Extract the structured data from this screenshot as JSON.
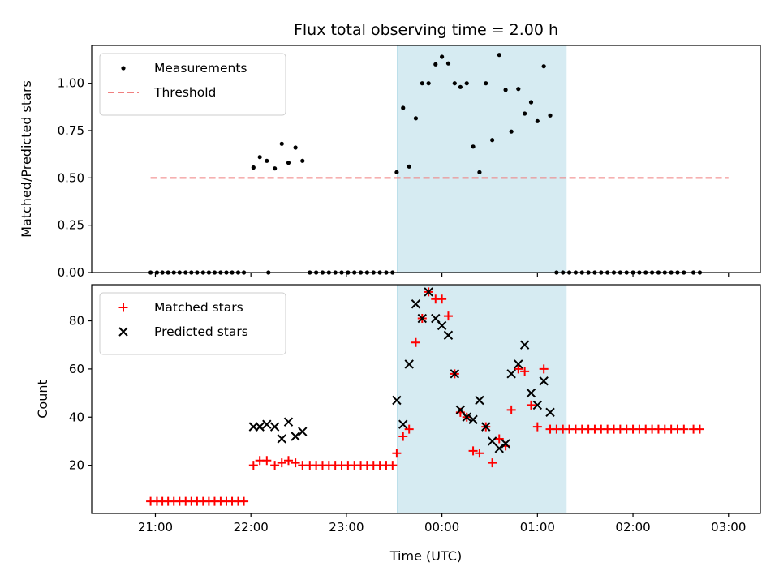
{
  "chart_data": [
    {
      "type": "scatter",
      "title": "Flux total observing time = 2.00 h",
      "xlabel": "",
      "ylabel": "Matched/Predicted stars",
      "xlim": [
        -200,
        1900
      ],
      "ylim": [
        0,
        1.2
      ],
      "xticks": [
        {
          "v": 0,
          "label": ""
        },
        {
          "v": 300,
          "label": ""
        },
        {
          "v": 600,
          "label": ""
        },
        {
          "v": 900,
          "label": ""
        },
        {
          "v": 1200,
          "label": ""
        },
        {
          "v": 1500,
          "label": ""
        },
        {
          "v": 1800,
          "label": ""
        }
      ],
      "yticks": [
        {
          "v": 0,
          "label": "0.00"
        },
        {
          "v": 0.25,
          "label": "0.25"
        },
        {
          "v": 0.5,
          "label": "0.50"
        },
        {
          "v": 0.75,
          "label": "0.75"
        },
        {
          "v": 1.0,
          "label": "1.00"
        }
      ],
      "x_unit_note": "minutes after 21:00 UTC",
      "shaded_region": {
        "x0": 760,
        "x1": 1290,
        "color": "#add8e6"
      },
      "threshold": {
        "name": "Threshold",
        "y": 0.5,
        "x0": -15,
        "x1": 1800,
        "color": "#f08080"
      },
      "series": [
        {
          "name": "Measurements",
          "marker": "dot",
          "color": "#000000",
          "points": [
            [
              -15,
              0
            ],
            [
              5,
              0
            ],
            [
              22,
              0
            ],
            [
              40,
              0
            ],
            [
              58,
              0
            ],
            [
              76,
              0
            ],
            [
              95,
              0
            ],
            [
              113,
              0
            ],
            [
              131,
              0
            ],
            [
              150,
              0
            ],
            [
              168,
              0
            ],
            [
              186,
              0
            ],
            [
              205,
              0
            ],
            [
              223,
              0
            ],
            [
              241,
              0
            ],
            [
              260,
              0
            ],
            [
              278,
              0
            ],
            [
              355,
              0
            ],
            [
              308,
              0.555
            ],
            [
              328,
              0.61
            ],
            [
              350,
              0.59
            ],
            [
              375,
              0.55
            ],
            [
              397,
              0.68
            ],
            [
              418,
              0.58
            ],
            [
              440,
              0.66
            ],
            [
              462,
              0.59
            ],
            [
              485,
              0
            ],
            [
              505,
              0
            ],
            [
              525,
              0
            ],
            [
              545,
              0
            ],
            [
              565,
              0
            ],
            [
              585,
              0
            ],
            [
              605,
              0
            ],
            [
              625,
              0
            ],
            [
              645,
              0
            ],
            [
              665,
              0
            ],
            [
              685,
              0
            ],
            [
              705,
              0
            ],
            [
              725,
              0
            ],
            [
              745,
              0
            ],
            [
              758,
              0.53
            ],
            [
              778,
              0.87
            ],
            [
              797,
              0.56
            ],
            [
              818,
              0.815
            ],
            [
              838,
              1.0
            ],
            [
              858,
              1.0
            ],
            [
              880,
              1.1
            ],
            [
              900,
              1.14
            ],
            [
              920,
              1.105
            ],
            [
              940,
              1.0
            ],
            [
              958,
              0.98
            ],
            [
              978,
              1.0
            ],
            [
              998,
              0.665
            ],
            [
              1018,
              0.53
            ],
            [
              1038,
              1.0
            ],
            [
              1058,
              0.7
            ],
            [
              1080,
              1.15
            ],
            [
              1100,
              0.965
            ],
            [
              1118,
              0.745
            ],
            [
              1140,
              0.97
            ],
            [
              1160,
              0.84
            ],
            [
              1180,
              0.9
            ],
            [
              1200,
              0.8
            ],
            [
              1220,
              1.09
            ],
            [
              1240,
              0.83
            ],
            [
              1260,
              0
            ],
            [
              1280,
              0
            ],
            [
              1300,
              0
            ],
            [
              1320,
              0
            ],
            [
              1340,
              0
            ],
            [
              1360,
              0
            ],
            [
              1380,
              0
            ],
            [
              1400,
              0
            ],
            [
              1420,
              0
            ],
            [
              1440,
              0
            ],
            [
              1460,
              0
            ],
            [
              1480,
              0
            ],
            [
              1500,
              0
            ],
            [
              1520,
              0
            ],
            [
              1540,
              0
            ],
            [
              1560,
              0
            ],
            [
              1580,
              0
            ],
            [
              1600,
              0
            ],
            [
              1620,
              0
            ],
            [
              1640,
              0
            ],
            [
              1660,
              0
            ],
            [
              1690,
              0
            ],
            [
              1710,
              0
            ]
          ]
        }
      ],
      "legend": "upper left"
    },
    {
      "type": "scatter",
      "title": "",
      "xlabel": "Time (UTC)",
      "ylabel": "Count",
      "xlim": [
        -200,
        1900
      ],
      "ylim": [
        0,
        95
      ],
      "xticks": [
        {
          "v": 0,
          "label": "21:00"
        },
        {
          "v": 300,
          "label": "22:00"
        },
        {
          "v": 600,
          "label": "23:00"
        },
        {
          "v": 900,
          "label": "00:00"
        },
        {
          "v": 1200,
          "label": "01:00"
        },
        {
          "v": 1500,
          "label": "02:00"
        },
        {
          "v": 1800,
          "label": "03:00"
        }
      ],
      "yticks": [
        {
          "v": 20,
          "label": "20"
        },
        {
          "v": 40,
          "label": "40"
        },
        {
          "v": 60,
          "label": "60"
        },
        {
          "v": 80,
          "label": "80"
        }
      ],
      "x_unit_note": "minutes after 21:00 UTC",
      "shaded_region": {
        "x0": 760,
        "x1": 1290,
        "color": "#add8e6"
      },
      "series": [
        {
          "name": "Matched stars",
          "marker": "plus",
          "color": "#ff0000",
          "points": [
            [
              -15,
              5
            ],
            [
              5,
              5
            ],
            [
              22,
              5
            ],
            [
              40,
              5
            ],
            [
              58,
              5
            ],
            [
              76,
              5
            ],
            [
              95,
              5
            ],
            [
              113,
              5
            ],
            [
              131,
              5
            ],
            [
              150,
              5
            ],
            [
              168,
              5
            ],
            [
              186,
              5
            ],
            [
              205,
              5
            ],
            [
              223,
              5
            ],
            [
              241,
              5
            ],
            [
              260,
              5
            ],
            [
              278,
              5
            ],
            [
              308,
              20
            ],
            [
              328,
              22
            ],
            [
              350,
              22
            ],
            [
              375,
              20
            ],
            [
              397,
              21
            ],
            [
              418,
              22
            ],
            [
              440,
              21
            ],
            [
              462,
              20
            ],
            [
              485,
              20
            ],
            [
              505,
              20
            ],
            [
              525,
              20
            ],
            [
              545,
              20
            ],
            [
              565,
              20
            ],
            [
              585,
              20
            ],
            [
              605,
              20
            ],
            [
              625,
              20
            ],
            [
              645,
              20
            ],
            [
              665,
              20
            ],
            [
              685,
              20
            ],
            [
              705,
              20
            ],
            [
              725,
              20
            ],
            [
              745,
              20
            ],
            [
              758,
              25
            ],
            [
              778,
              32
            ],
            [
              797,
              35
            ],
            [
              818,
              71
            ],
            [
              838,
              81
            ],
            [
              858,
              92
            ],
            [
              880,
              89
            ],
            [
              900,
              89
            ],
            [
              920,
              82
            ],
            [
              940,
              58
            ],
            [
              958,
              42
            ],
            [
              978,
              40
            ],
            [
              998,
              26
            ],
            [
              1018,
              25
            ],
            [
              1038,
              36
            ],
            [
              1058,
              21
            ],
            [
              1080,
              31
            ],
            [
              1100,
              28
            ],
            [
              1118,
              43
            ],
            [
              1140,
              60
            ],
            [
              1160,
              59
            ],
            [
              1180,
              45
            ],
            [
              1200,
              36
            ],
            [
              1220,
              60
            ],
            [
              1240,
              35
            ],
            [
              1260,
              35
            ],
            [
              1280,
              35
            ],
            [
              1300,
              35
            ],
            [
              1320,
              35
            ],
            [
              1340,
              35
            ],
            [
              1360,
              35
            ],
            [
              1380,
              35
            ],
            [
              1400,
              35
            ],
            [
              1420,
              35
            ],
            [
              1440,
              35
            ],
            [
              1460,
              35
            ],
            [
              1480,
              35
            ],
            [
              1500,
              35
            ],
            [
              1520,
              35
            ],
            [
              1540,
              35
            ],
            [
              1560,
              35
            ],
            [
              1580,
              35
            ],
            [
              1600,
              35
            ],
            [
              1620,
              35
            ],
            [
              1640,
              35
            ],
            [
              1660,
              35
            ],
            [
              1690,
              35
            ],
            [
              1710,
              35
            ]
          ]
        },
        {
          "name": "Predicted stars",
          "marker": "x",
          "color": "#000000",
          "points": [
            [
              308,
              36
            ],
            [
              328,
              36
            ],
            [
              350,
              37
            ],
            [
              375,
              36
            ],
            [
              397,
              31
            ],
            [
              418,
              38
            ],
            [
              440,
              32
            ],
            [
              462,
              34
            ],
            [
              758,
              47
            ],
            [
              778,
              37
            ],
            [
              797,
              62
            ],
            [
              818,
              87
            ],
            [
              838,
              81
            ],
            [
              858,
              92
            ],
            [
              880,
              81
            ],
            [
              900,
              78
            ],
            [
              920,
              74
            ],
            [
              940,
              58
            ],
            [
              958,
              43
            ],
            [
              978,
              40
            ],
            [
              998,
              39
            ],
            [
              1018,
              47
            ],
            [
              1038,
              36
            ],
            [
              1058,
              30
            ],
            [
              1080,
              27
            ],
            [
              1100,
              29
            ],
            [
              1118,
              58
            ],
            [
              1140,
              62
            ],
            [
              1160,
              70
            ],
            [
              1180,
              50
            ],
            [
              1200,
              45
            ],
            [
              1220,
              55
            ],
            [
              1240,
              42
            ]
          ]
        }
      ],
      "legend": "upper left"
    }
  ]
}
